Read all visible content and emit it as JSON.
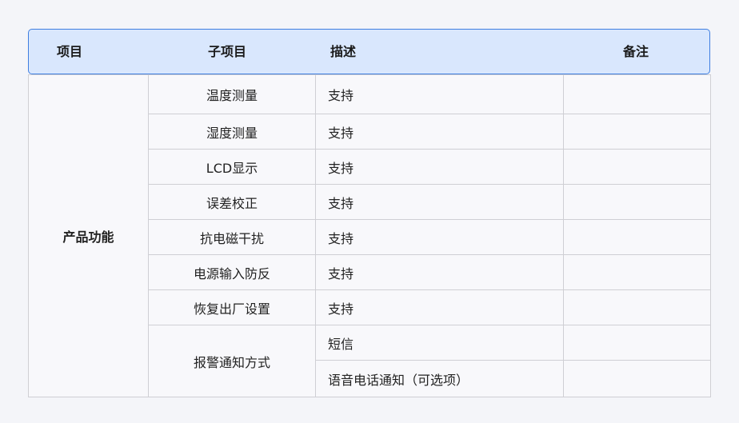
{
  "header": {
    "col1": "项目",
    "col2": "子项目",
    "col3": "描述",
    "col4": "备注"
  },
  "group": "产品功能",
  "rows": [
    {
      "sub": "温度测量",
      "desc": "支持",
      "note": ""
    },
    {
      "sub": "湿度测量",
      "desc": "支持",
      "note": ""
    },
    {
      "sub": "LCD显示",
      "desc": "支持",
      "note": ""
    },
    {
      "sub": "误差校正",
      "desc": "支持",
      "note": ""
    },
    {
      "sub": "抗电磁干扰",
      "desc": "支持",
      "note": ""
    },
    {
      "sub": "电源输入防反",
      "desc": "支持",
      "note": ""
    },
    {
      "sub": "恢复出厂设置",
      "desc": "支持",
      "note": ""
    }
  ],
  "alarm": {
    "sub": "报警通知方式",
    "options": [
      "短信",
      "语音电话通知（可选项）"
    ]
  },
  "colors": {
    "header_bg": "#d9e7fd",
    "header_border": "#3f7ee0",
    "page_bg": "#f4f5f9"
  }
}
